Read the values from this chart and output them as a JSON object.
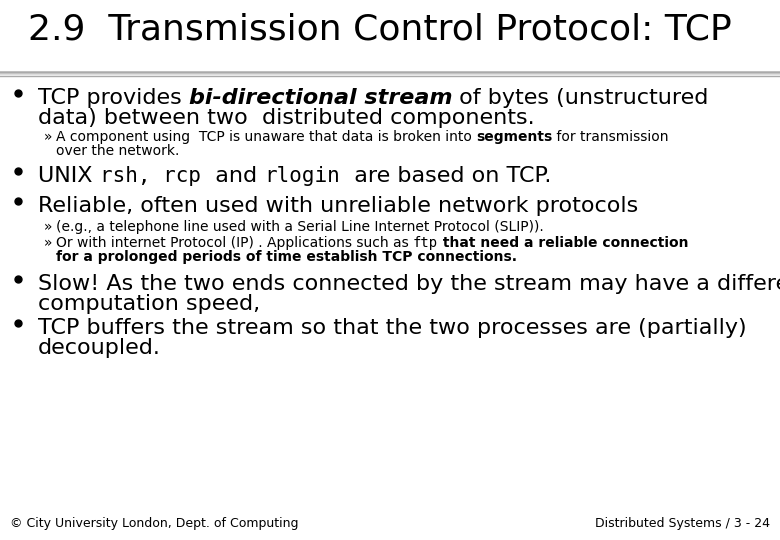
{
  "title": "2.9  Transmission Control Protocol: TCP",
  "bg_color": "#ffffff",
  "title_color": "#000000",
  "title_fontsize": 26,
  "footer_left": "© City University London, Dept. of Computing",
  "footer_right": "Distributed Systems / 3 - 24",
  "footer_fontsize": 9
}
